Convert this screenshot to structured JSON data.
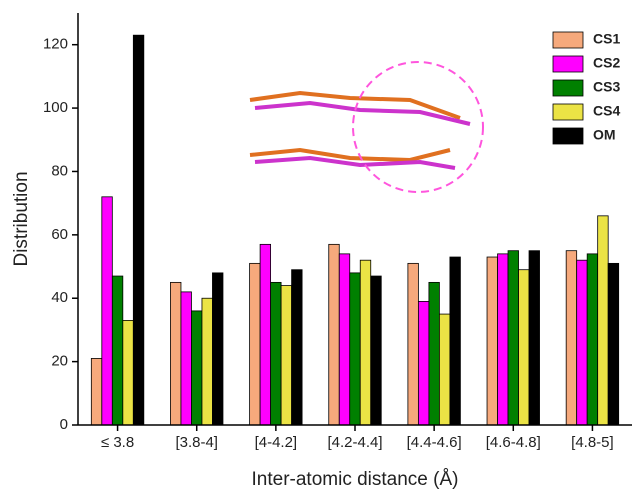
{
  "chart_data": {
    "type": "bar",
    "x_label": "Inter-atomic distance (Å)",
    "y_label": "Distribution",
    "categories": [
      "≤ 3.8",
      "[3.8-4]",
      "[4-4.2]",
      "[4.2-4.4]",
      "[4.4-4.6]",
      "[4.6-4.8]",
      "[4.8-5]"
    ],
    "series": [
      {
        "name": "CS1",
        "color": "#f6a97c",
        "values": [
          21,
          45,
          51,
          57,
          51,
          53,
          55
        ]
      },
      {
        "name": "CS2",
        "color": "#ff00ff",
        "values": [
          72,
          42,
          57,
          54,
          39,
          54,
          52
        ]
      },
      {
        "name": "CS3",
        "color": "#008000",
        "values": [
          47,
          36,
          45,
          48,
          45,
          55,
          54
        ]
      },
      {
        "name": "CS4",
        "color": "#ebe345",
        "values": [
          33,
          40,
          44,
          52,
          35,
          49,
          66
        ]
      },
      {
        "name": "OM",
        "color": "#000000",
        "values": [
          123,
          48,
          49,
          47,
          53,
          55,
          51
        ]
      }
    ],
    "ylim": [
      0,
      130
    ],
    "yticks": [
      0,
      20,
      40,
      60,
      80,
      100,
      120
    ],
    "legend": "upper-right"
  }
}
